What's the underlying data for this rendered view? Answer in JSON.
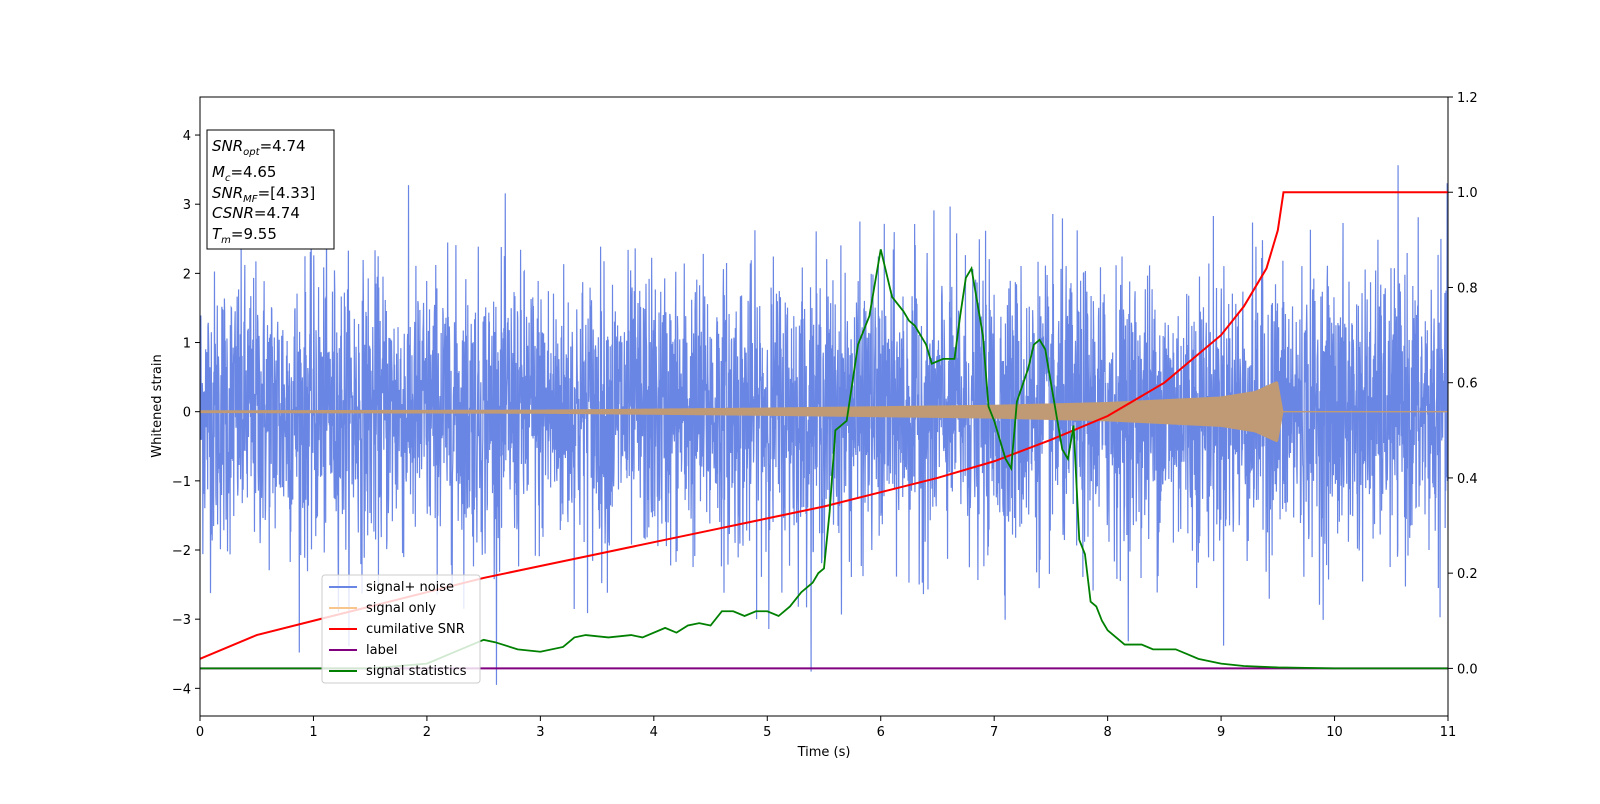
{
  "chart_data": {
    "type": "line",
    "xlabel": "Time (s)",
    "ylabel": "Whitened strain",
    "title": "",
    "xlim": [
      0,
      11
    ],
    "ylim": [
      -4.4,
      4.55
    ],
    "y2lim": [
      -0.1,
      1.2
    ],
    "x_ticks": [
      "0",
      "1",
      "2",
      "3",
      "4",
      "5",
      "6",
      "7",
      "8",
      "9",
      "10",
      "11"
    ],
    "y_ticks": [
      "−4",
      "−3",
      "−2",
      "−1",
      "0",
      "1",
      "2",
      "3",
      "4"
    ],
    "y2_ticks": [
      "0.0",
      "0.2",
      "0.4",
      "0.6",
      "0.8",
      "1.0",
      "1.2"
    ],
    "grid": false,
    "legend_position": "lower-left",
    "info_box": {
      "snr_opt": "=4.74",
      "mc": "=4.65",
      "snr_mf": "=[4.33]",
      "csnr": "=4.74",
      "tm": "=9.55"
    },
    "colors": {
      "signal_noise": "#6a86e4",
      "signal_only": "#f8c58c",
      "signal_only_fill": "#c09a74",
      "cumulative_snr": "#ff0000",
      "label": "#800080",
      "signal_statistics": "#008000"
    },
    "series": [
      {
        "name": "signal+ noise",
        "axis": "left",
        "description_kind": "noise",
        "noise_sigma": 1.0,
        "t_end": 11
      },
      {
        "name": "signal only",
        "axis": "left",
        "kind": "chirp",
        "envelope": [
          [
            0,
            0.02
          ],
          [
            3,
            0.03
          ],
          [
            5,
            0.06
          ],
          [
            6,
            0.08
          ],
          [
            7,
            0.1
          ],
          [
            8,
            0.14
          ],
          [
            9,
            0.22
          ],
          [
            9.3,
            0.3
          ],
          [
            9.5,
            0.45
          ],
          [
            9.55,
            0.0
          ],
          [
            11,
            0.0
          ]
        ]
      },
      {
        "name": "cumilative SNR",
        "axis": "right",
        "x": [
          0,
          0.5,
          1,
          1.5,
          2,
          2.5,
          3,
          3.5,
          4,
          4.5,
          5,
          5.5,
          6,
          6.5,
          7,
          7.5,
          8,
          8.5,
          9,
          9.2,
          9.4,
          9.5,
          9.55,
          11
        ],
        "y": [
          0.02,
          0.07,
          0.1,
          0.13,
          0.16,
          0.19,
          0.215,
          0.24,
          0.265,
          0.29,
          0.315,
          0.34,
          0.37,
          0.4,
          0.435,
          0.48,
          0.53,
          0.6,
          0.7,
          0.76,
          0.84,
          0.92,
          1.0,
          1.0
        ]
      },
      {
        "name": "label",
        "axis": "right",
        "x": [
          0,
          11
        ],
        "y": [
          0.0,
          0.0
        ]
      },
      {
        "name": "signal statistics",
        "axis": "right",
        "x": [
          0,
          0.5,
          1,
          1.5,
          2,
          2.2,
          2.4,
          2.5,
          2.6,
          2.8,
          3,
          3.2,
          3.3,
          3.4,
          3.6,
          3.8,
          3.9,
          4.1,
          4.2,
          4.3,
          4.4,
          4.5,
          4.6,
          4.7,
          4.8,
          4.9,
          5.0,
          5.1,
          5.2,
          5.3,
          5.4,
          5.45,
          5.5,
          5.55,
          5.6,
          5.7,
          5.8,
          5.9,
          5.95,
          6.0,
          6.1,
          6.2,
          6.25,
          6.3,
          6.4,
          6.45,
          6.55,
          6.65,
          6.7,
          6.75,
          6.8,
          6.9,
          6.95,
          7.0,
          7.1,
          7.15,
          7.2,
          7.3,
          7.35,
          7.4,
          7.45,
          7.5,
          7.6,
          7.65,
          7.7,
          7.75,
          7.8,
          7.85,
          7.9,
          7.95,
          8.0,
          8.1,
          8.15,
          8.3,
          8.4,
          8.5,
          8.6,
          8.7,
          8.8,
          9.0,
          9.2,
          9.5,
          10,
          11
        ],
        "y": [
          0.0,
          0.0,
          0.0,
          0.0,
          0.01,
          0.03,
          0.05,
          0.06,
          0.055,
          0.04,
          0.035,
          0.045,
          0.065,
          0.07,
          0.065,
          0.07,
          0.065,
          0.085,
          0.075,
          0.09,
          0.095,
          0.09,
          0.12,
          0.12,
          0.11,
          0.12,
          0.12,
          0.11,
          0.13,
          0.16,
          0.18,
          0.2,
          0.21,
          0.33,
          0.5,
          0.52,
          0.68,
          0.74,
          0.81,
          0.88,
          0.78,
          0.75,
          0.73,
          0.72,
          0.68,
          0.64,
          0.65,
          0.65,
          0.74,
          0.82,
          0.84,
          0.7,
          0.55,
          0.52,
          0.44,
          0.42,
          0.56,
          0.63,
          0.68,
          0.69,
          0.67,
          0.6,
          0.46,
          0.44,
          0.51,
          0.27,
          0.24,
          0.14,
          0.13,
          0.1,
          0.08,
          0.06,
          0.05,
          0.05,
          0.04,
          0.04,
          0.04,
          0.03,
          0.02,
          0.01,
          0.005,
          0.002,
          0.0,
          0.0
        ]
      }
    ]
  }
}
